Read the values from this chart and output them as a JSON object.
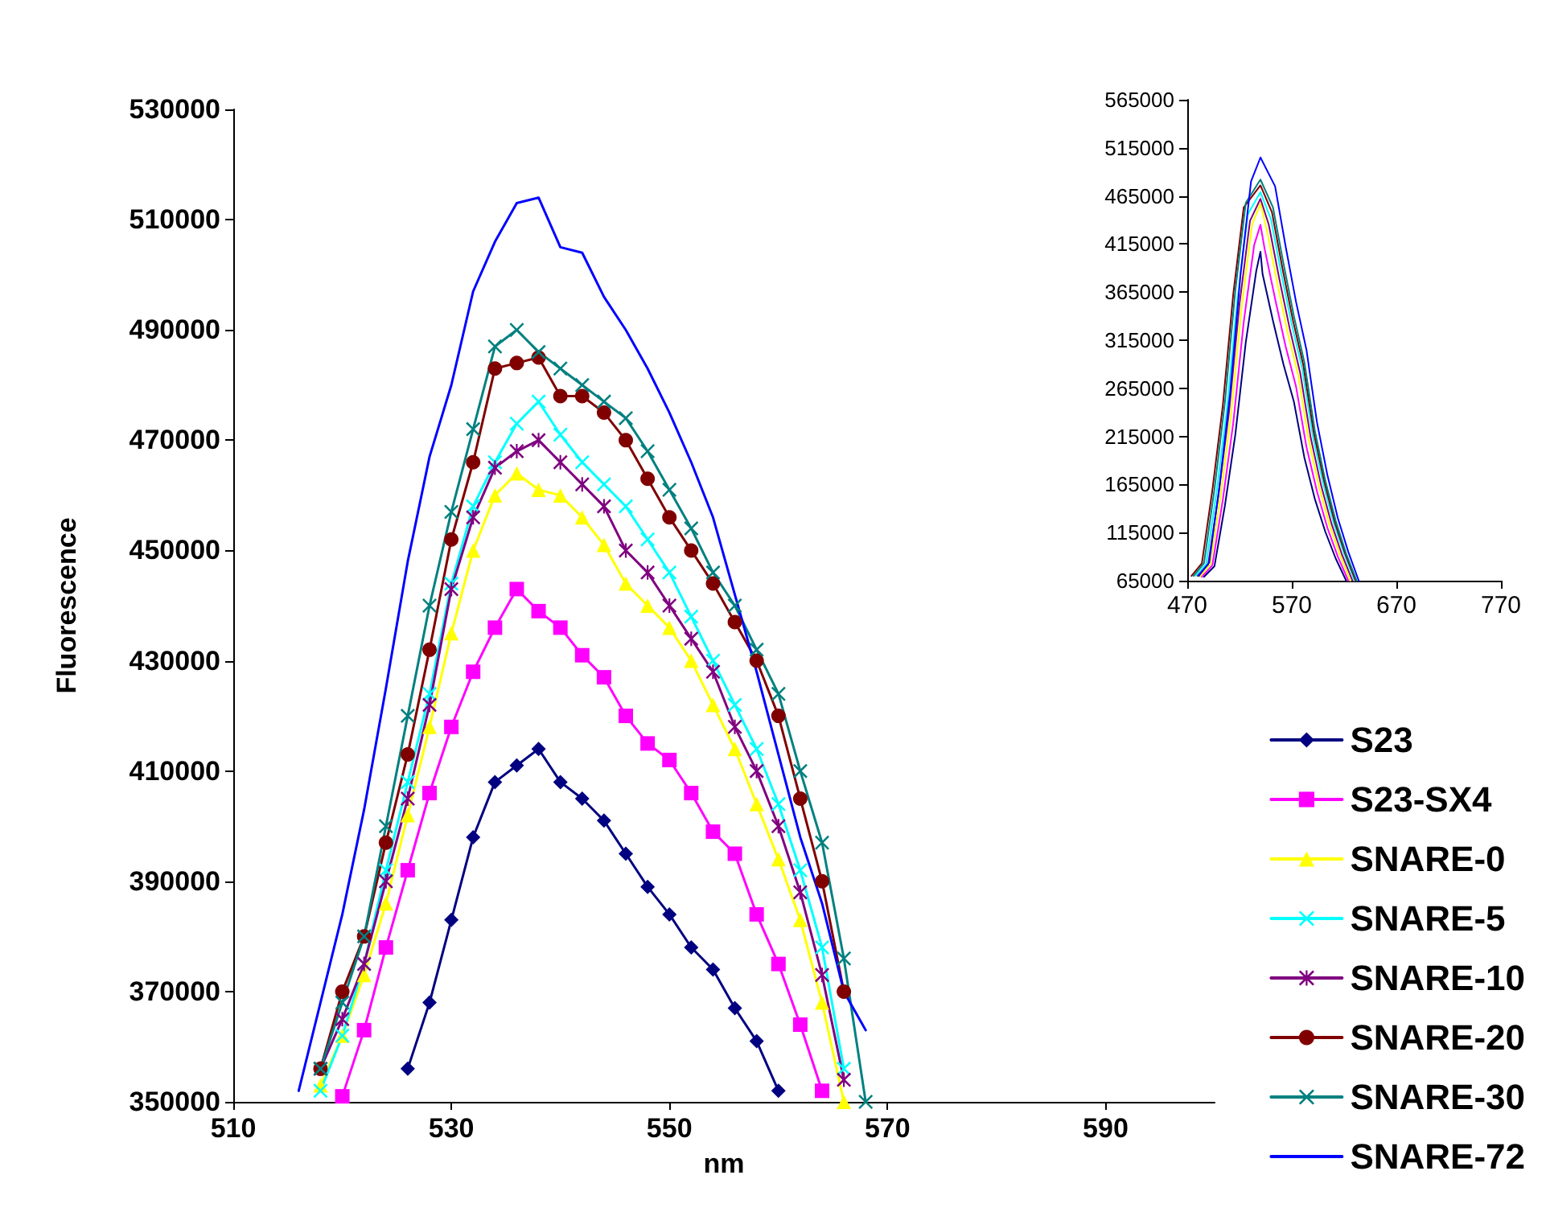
{
  "chart_data": [
    {
      "type": "line",
      "xlabel": "nm",
      "ylabel": "Fluorescence",
      "xlim": [
        510,
        600
      ],
      "xticks": [
        510,
        530,
        550,
        570,
        590
      ],
      "ylim": [
        350000,
        530000
      ],
      "yticks": [
        350000,
        370000,
        390000,
        410000,
        430000,
        450000,
        470000,
        490000,
        510000,
        530000
      ],
      "grid": false,
      "legend": "bottom right",
      "x": [
        516,
        518,
        520,
        522,
        524,
        526,
        528,
        530,
        532,
        534,
        536,
        538,
        540,
        542,
        544,
        546,
        548,
        550,
        552,
        554,
        556,
        558,
        560,
        562,
        564,
        566,
        568
      ],
      "series": [
        {
          "name": "S23",
          "color": "#000080",
          "marker": "diamond",
          "values": [
            null,
            null,
            null,
            null,
            null,
            356000,
            368000,
            383000,
            398000,
            408000,
            411000,
            414000,
            408000,
            405000,
            401000,
            395000,
            389000,
            384000,
            378000,
            374000,
            367000,
            361000,
            352000,
            null,
            null,
            null,
            null
          ]
        },
        {
          "name": "S23-SX4",
          "color": "#ff00ff",
          "marker": "square",
          "values": [
            null,
            null,
            351000,
            363000,
            378000,
            392000,
            406000,
            418000,
            428000,
            436000,
            443000,
            439000,
            436000,
            431000,
            427000,
            420000,
            415000,
            412000,
            406000,
            399000,
            395000,
            384000,
            375000,
            364000,
            352000,
            null,
            null
          ]
        },
        {
          "name": "SNARE-0",
          "color": "#ffff00",
          "marker": "triangle",
          "values": [
            null,
            353000,
            362000,
            373000,
            386000,
            402000,
            418000,
            435000,
            450000,
            460000,
            464000,
            461000,
            460000,
            456000,
            451000,
            444000,
            440000,
            436000,
            430000,
            422000,
            414000,
            404000,
            394000,
            383000,
            368000,
            350000,
            null
          ]
        },
        {
          "name": "SNARE-5",
          "color": "#00ffff",
          "marker": "cross",
          "values": [
            null,
            352000,
            362000,
            375000,
            392000,
            408000,
            424000,
            444000,
            458000,
            466000,
            473000,
            477000,
            471000,
            466000,
            462000,
            458000,
            452000,
            446000,
            438000,
            430000,
            422000,
            414000,
            404000,
            392000,
            378000,
            356000,
            null
          ]
        },
        {
          "name": "SNARE-10",
          "color": "#800080",
          "marker": "star",
          "values": [
            null,
            356000,
            365000,
            375000,
            390000,
            405000,
            422000,
            443000,
            456000,
            465000,
            468000,
            470000,
            466000,
            462000,
            458000,
            450000,
            446000,
            440000,
            434000,
            428000,
            418000,
            410000,
            400000,
            388000,
            373000,
            354000,
            null
          ]
        },
        {
          "name": "SNARE-20",
          "color": "#800000",
          "marker": "circle",
          "values": [
            null,
            356000,
            370000,
            380000,
            397000,
            413000,
            432000,
            452000,
            466000,
            483000,
            484000,
            485000,
            478000,
            478000,
            475000,
            470000,
            463000,
            456000,
            450000,
            444000,
            437000,
            430000,
            420000,
            405000,
            390000,
            370000,
            null
          ]
        },
        {
          "name": "SNARE-30",
          "color": "#008080",
          "marker": "cross",
          "values": [
            null,
            356000,
            368000,
            380000,
            400000,
            420000,
            440000,
            457000,
            472000,
            487000,
            490000,
            486000,
            483000,
            480000,
            477000,
            474000,
            468000,
            461000,
            454000,
            446000,
            440000,
            432000,
            424000,
            410000,
            397000,
            376000,
            350000
          ]
        },
        {
          "name": "SNARE-72",
          "color": "#0000ff",
          "marker": "none",
          "values": [
            352000,
            368000,
            384000,
            403000,
            425000,
            448000,
            467000,
            480000,
            497000,
            506000,
            513000,
            514000,
            505000,
            504000,
            496000,
            490000,
            483000,
            475000,
            466000,
            456000,
            442000,
            428000,
            413000,
            398000,
            386000,
            370000,
            363000
          ]
        }
      ]
    },
    {
      "type": "line",
      "xlim": [
        470,
        770
      ],
      "xticks": [
        470,
        570,
        670,
        770
      ],
      "ylim": [
        65000,
        565000
      ],
      "yticks": [
        65000,
        115000,
        165000,
        215000,
        265000,
        315000,
        365000,
        415000,
        465000,
        515000,
        565000
      ],
      "grid": false,
      "legend": false,
      "series": [
        {
          "color": "#000080",
          "x": [
            486,
            496,
            506,
            516,
            526,
            536,
            540,
            542,
            552,
            562,
            572,
            582,
            592,
            602,
            612,
            622
          ],
          "values": [
            69000,
            80000,
            143000,
            217000,
            313000,
            387000,
            407000,
            384000,
            335000,
            290000,
            251000,
            193000,
            150000,
            116000,
            88000,
            65000
          ]
        },
        {
          "color": "#ff00ff",
          "x": [
            484,
            494,
            504,
            514,
            524,
            534,
            540,
            544,
            554,
            564,
            574,
            584,
            594,
            604,
            614,
            624
          ],
          "values": [
            69000,
            81000,
            149000,
            229000,
            334000,
            414000,
            435000,
            410000,
            358000,
            309000,
            267000,
            204000,
            158000,
            120000,
            90000,
            65000
          ]
        },
        {
          "color": "#ffff00",
          "x": [
            482,
            492,
            502,
            512,
            522,
            532,
            540,
            546,
            556,
            566,
            576,
            586,
            596,
            606,
            616,
            626
          ],
          "values": [
            69000,
            82000,
            154000,
            239000,
            349000,
            435000,
            457000,
            430000,
            375000,
            323000,
            279000,
            212000,
            163000,
            123000,
            92000,
            65000
          ]
        },
        {
          "color": "#00ffff",
          "x": [
            478,
            488,
            498,
            508,
            518,
            528,
            540,
            550,
            560,
            570,
            580,
            590,
            600,
            610,
            620,
            630
          ],
          "values": [
            70000,
            82000,
            157000,
            244000,
            358000,
            446000,
            469000,
            441000,
            384000,
            331000,
            285000,
            216000,
            166000,
            125000,
            93000,
            65000
          ]
        },
        {
          "color": "#800080",
          "x": [
            480,
            490,
            500,
            510,
            520,
            530,
            540,
            548,
            558,
            568,
            578,
            588,
            598,
            608,
            618,
            628
          ],
          "values": [
            70000,
            82000,
            155000,
            241000,
            353000,
            439000,
            462000,
            435000,
            379000,
            327000,
            281000,
            214000,
            164000,
            124000,
            92000,
            65000
          ]
        },
        {
          "color": "#800000",
          "x": [
            474,
            484,
            494,
            504,
            514,
            524,
            540,
            551,
            561,
            571,
            581,
            591,
            601,
            611,
            621,
            631
          ],
          "values": [
            70000,
            83000,
            159000,
            247000,
            363000,
            453000,
            476000,
            448000,
            390000,
            336000,
            289000,
            219000,
            168000,
            126000,
            93000,
            65000
          ]
        },
        {
          "color": "#008080",
          "x": [
            476,
            486,
            496,
            506,
            516,
            526,
            540,
            552,
            562,
            572,
            582,
            592,
            602,
            612,
            622,
            632
          ],
          "values": [
            70000,
            83000,
            160000,
            250000,
            367000,
            458000,
            482000,
            453000,
            395000,
            340000,
            292000,
            221000,
            169000,
            127000,
            93000,
            65000
          ]
        },
        {
          "color": "#0000ff",
          "x": [
            481,
            491,
            501,
            511,
            521,
            531,
            540,
            554,
            564,
            574,
            584,
            594,
            604,
            614,
            624,
            634
          ],
          "values": [
            70000,
            84000,
            165000,
            260000,
            384000,
            480000,
            505000,
            475000,
            413000,
            355000,
            305000,
            230000,
            175000,
            130000,
            95000,
            65000
          ]
        }
      ]
    }
  ]
}
